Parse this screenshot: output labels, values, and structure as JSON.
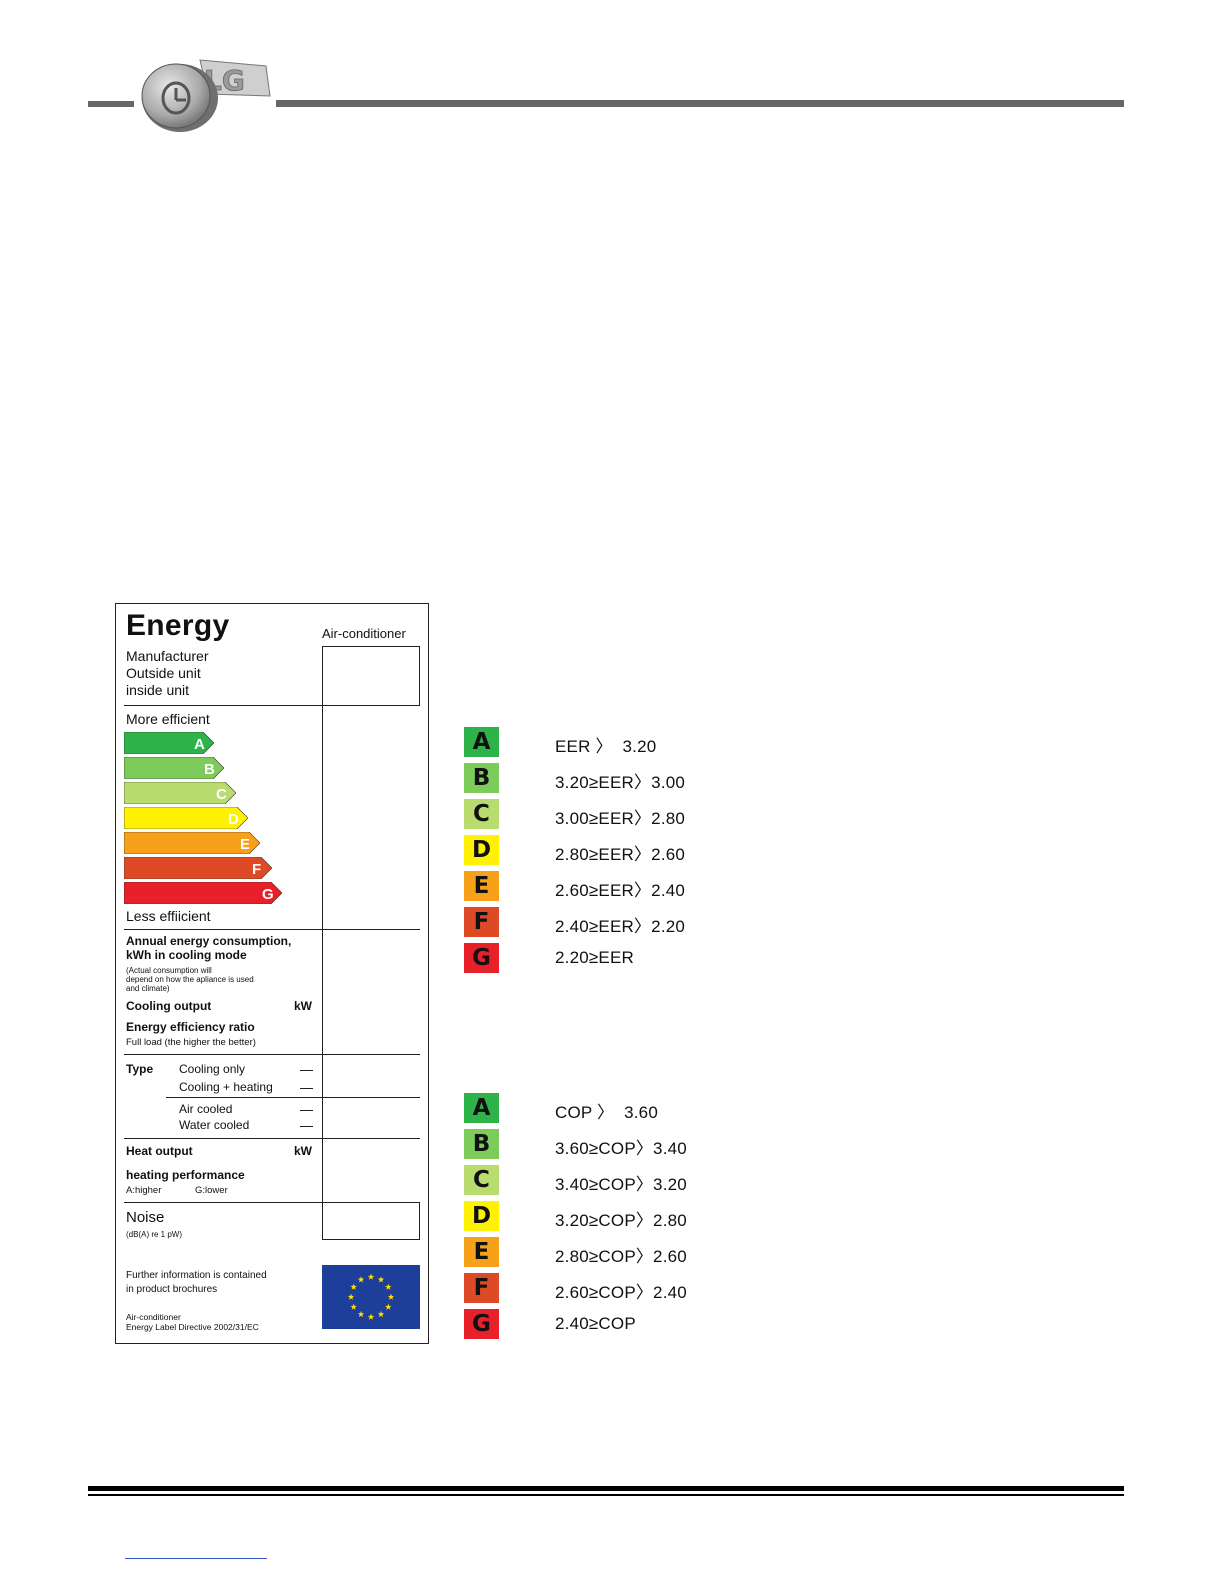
{
  "header": {
    "logo_text": "LG"
  },
  "energy_label": {
    "title": "Energy",
    "product": "Air-conditioner",
    "manufacturer_lines": [
      "Manufacturer",
      "Outside unit",
      "inside unit"
    ],
    "more_efficient": "More efficient",
    "less_efficient": "Less effiicient",
    "classes": [
      "A",
      "B",
      "C",
      "D",
      "E",
      "F",
      "G"
    ],
    "annual_consumption": [
      "Annual energy consumption,",
      "kWh in cooling mode"
    ],
    "consumption_note": [
      "(Actual consumption will",
      "depend on how the apliance is used",
      "and climate)"
    ],
    "cooling_output": "Cooling output",
    "unit_kw": "kW",
    "eer_title": "Energy efficiency ratio",
    "eer_note": "Full load (the higher the better)",
    "type_label": "Type",
    "type_options": [
      "Cooling only",
      "Cooling + heating"
    ],
    "cool_options": [
      "Air cooled",
      "Water cooled"
    ],
    "heat_output": "Heat output",
    "heating_performance": "heating performance",
    "heating_scale": [
      "A:higher",
      "G:lower"
    ],
    "noise": "Noise",
    "noise_note": "(dB(A) re 1 pW)",
    "further_info": [
      "Further information is contained",
      "in product brochures"
    ],
    "directive": [
      "Air-conditioner",
      "Energy Label Directive 2002/31/EC"
    ]
  },
  "cooling_classes": [
    {
      "grade": "A",
      "rule": "EER 〉  3.20",
      "color": "#2db34a"
    },
    {
      "grade": "B",
      "rule": "3.20≥EER〉3.00",
      "color": "#7ccb5b"
    },
    {
      "grade": "C",
      "rule": "3.00≥EER〉2.80",
      "color": "#b8dc6e"
    },
    {
      "grade": "D",
      "rule": "2.80≥EER〉2.60",
      "color": "#fff200"
    },
    {
      "grade": "E",
      "rule": "2.60≥EER〉2.40",
      "color": "#f7a11a"
    },
    {
      "grade": "F",
      "rule": "2.40≥EER〉2.20",
      "color": "#df4a26"
    },
    {
      "grade": "G",
      "rule": "2.20≥EER",
      "color": "#e8202a"
    }
  ],
  "heating_classes": [
    {
      "grade": "A",
      "rule": "COP 〉  3.60",
      "color": "#2db34a"
    },
    {
      "grade": "B",
      "rule": "3.60≥COP〉3.40",
      "color": "#7ccb5b"
    },
    {
      "grade": "C",
      "rule": "3.40≥COP〉3.20",
      "color": "#b8dc6e"
    },
    {
      "grade": "D",
      "rule": "3.20≥COP〉2.80",
      "color": "#fff200"
    },
    {
      "grade": "E",
      "rule": "2.80≥COP〉2.60",
      "color": "#f7a11a"
    },
    {
      "grade": "F",
      "rule": "2.60≥COP〉2.40",
      "color": "#df4a26"
    },
    {
      "grade": "G",
      "rule": "2.40≥COP",
      "color": "#e8202a"
    }
  ]
}
